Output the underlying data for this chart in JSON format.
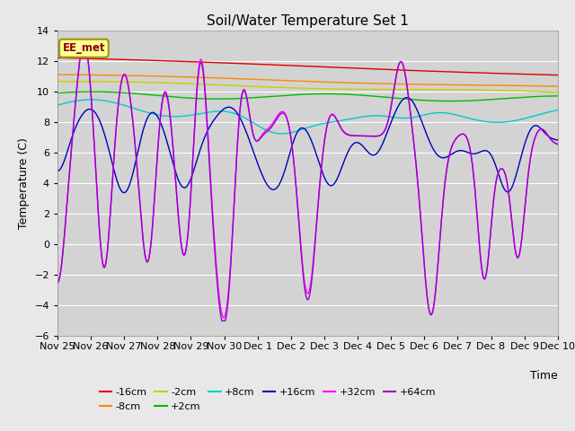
{
  "title": "Soil/Water Temperature Set 1",
  "ylabel": "Temperature (C)",
  "xlabel": "Time",
  "ylim": [
    -6,
    14
  ],
  "yticks": [
    -6,
    -4,
    -2,
    0,
    2,
    4,
    6,
    8,
    10,
    12,
    14
  ],
  "bg_color": "#d3d3d3",
  "fig_color": "#e8e8e8",
  "annotation_label": "EE_met",
  "annotation_color": "#8B0000",
  "annotation_bg": "#ffff99",
  "annotation_border": "#999900",
  "series_colors": {
    "-16cm": "#dd0000",
    "-8cm": "#ff8800",
    "-2cm": "#cccc00",
    "+2cm": "#00bb00",
    "+8cm": "#00cccc",
    "+16cm": "#0000bb",
    "+32cm": "#ff00ff",
    "+64cm": "#9900cc"
  },
  "x_tick_labels": [
    "Nov 25",
    "Nov 26",
    "Nov 27",
    "Nov 28",
    "Nov 29",
    "Nov 30",
    "Dec 1",
    "Dec 2",
    "Dec 3",
    "Dec 4",
    "Dec 5",
    "Dec 6",
    "Dec 7",
    "Dec 8",
    "Dec 9",
    "Dec 10"
  ],
  "num_points": 500
}
